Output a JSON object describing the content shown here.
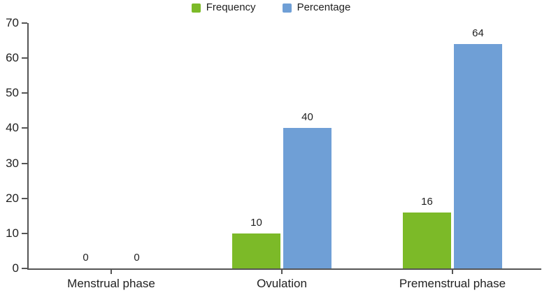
{
  "chart_data": {
    "type": "bar",
    "title": "",
    "categories": [
      "Menstrual phase",
      "Ovulation",
      "Premenstrual phase"
    ],
    "series": [
      {
        "name": "Frequency",
        "color": "#7CBA28",
        "values": [
          0,
          10,
          16
        ]
      },
      {
        "name": "Percentage",
        "color": "#6F9FD6",
        "values": [
          0,
          40,
          64
        ]
      }
    ],
    "ylim": [
      0,
      70
    ],
    "ytick_step": 10,
    "ytick_labels": [
      "0",
      "10",
      "20",
      "30",
      "40",
      "50",
      "60",
      "70"
    ],
    "data_labels_shown": true,
    "grid": false,
    "legend_position": "top-center",
    "axis_color": "#555555",
    "text_color": "#1f1f1f",
    "background_color": "#ffffff"
  }
}
